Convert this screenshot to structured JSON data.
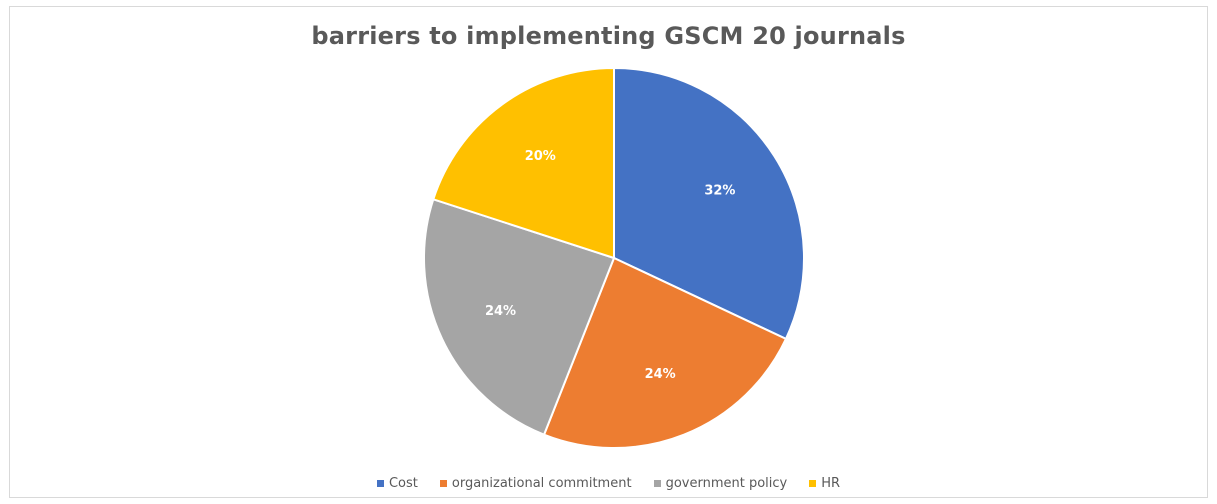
{
  "chart_data": {
    "type": "pie",
    "title": "barriers to implementing GSCM 20 journals",
    "categories": [
      "Cost",
      "organizational commitment",
      "government policy",
      "HR"
    ],
    "values": [
      32,
      24,
      24,
      20
    ],
    "labels": [
      "32%",
      "24%",
      "24%",
      "20%"
    ],
    "colors": [
      "#4472c4",
      "#ed7d31",
      "#a5a5a5",
      "#ffc000"
    ],
    "legend_position": "bottom"
  }
}
